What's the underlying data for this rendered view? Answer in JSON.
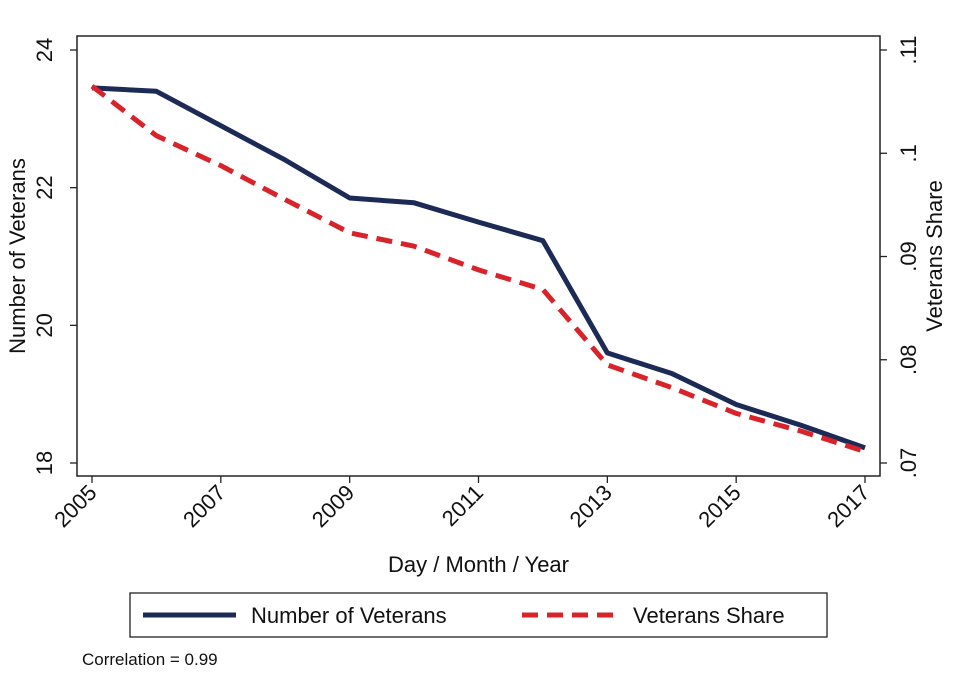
{
  "chart_data": {
    "type": "line",
    "title": "",
    "xlabel": "Day / Month / Year",
    "ylabel_left": "Number of Veterans",
    "ylabel_right": "Veterans Share",
    "x": [
      2005,
      2006,
      2007,
      2008,
      2009,
      2010,
      2011,
      2012,
      2013,
      2014,
      2015,
      2016,
      2017
    ],
    "x_ticks": [
      "2005",
      "2007",
      "2009",
      "2011",
      "2013",
      "2015",
      "2017"
    ],
    "xlim": [
      2005,
      2017
    ],
    "ylim_left": [
      18,
      24
    ],
    "ylim_right": [
      0.07,
      0.11
    ],
    "y_ticks_left": [
      "18",
      "20",
      "22",
      "24"
    ],
    "y_ticks_right": [
      ".07",
      ".08",
      ".09",
      ".1",
      ".11"
    ],
    "series": [
      {
        "name": "Number of Veterans",
        "axis": "left",
        "style": "solid",
        "color": "#1c2a56",
        "values": [
          23.45,
          23.4,
          22.9,
          22.4,
          21.85,
          21.78,
          21.5,
          21.23,
          19.6,
          19.3,
          18.85,
          18.55,
          18.22
        ]
      },
      {
        "name": "Veterans Share",
        "axis": "right",
        "style": "dashed",
        "color": "#d8232a",
        "values": [
          0.1065,
          0.1017,
          0.0988,
          0.0955,
          0.0923,
          0.091,
          0.0887,
          0.0868,
          0.0795,
          0.0773,
          0.0748,
          0.0731,
          0.0711
        ]
      }
    ],
    "legend_position": "bottom"
  },
  "footnote": "Correlation = 0.99"
}
